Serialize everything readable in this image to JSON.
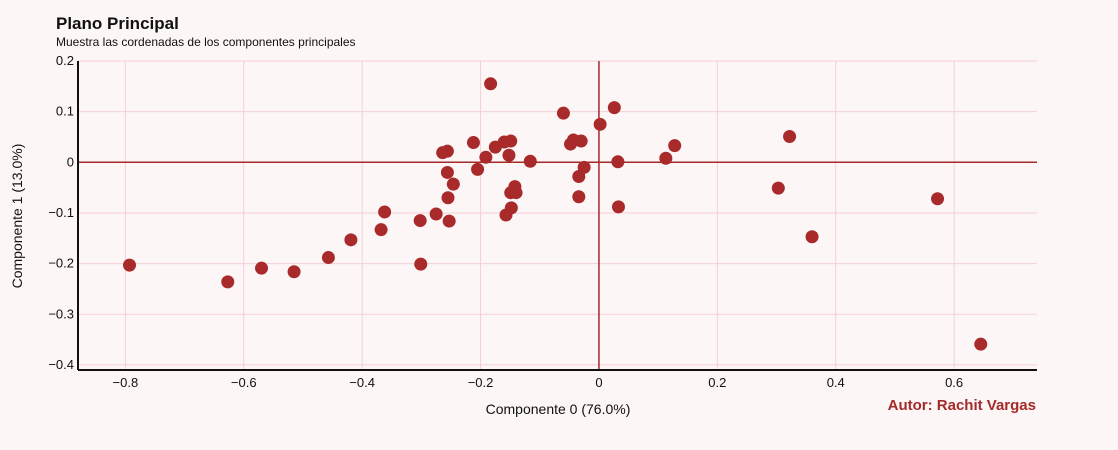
{
  "chart_data": {
    "type": "scatter",
    "title": "Plano Principal",
    "subtitle": "Muestra las cordenadas de los componentes principales",
    "xlabel": "Componente 0 (76.0%)",
    "ylabel": "Componente 1 (13.0%)",
    "xlim": [
      -0.88,
      0.74
    ],
    "ylim": [
      -0.41,
      0.2
    ],
    "x_ticks": [
      -0.8,
      -0.6,
      -0.4,
      -0.2,
      0,
      0.2,
      0.4,
      0.6
    ],
    "x_tick_labels": [
      "−0.8",
      "−0.6",
      "−0.4",
      "−0.2",
      "0",
      "0.2",
      "0.4",
      "0.6"
    ],
    "y_ticks": [
      0.2,
      0.1,
      0,
      -0.1,
      -0.2,
      -0.3,
      -0.4
    ],
    "y_tick_labels": [
      "0.2",
      "0.1",
      "0",
      "−0.1",
      "−0.2",
      "−0.3",
      "−0.4"
    ],
    "grid": true,
    "reference_lines": {
      "x": 0,
      "y": 0
    },
    "annotation": "Autor: Rachit Vargas",
    "colors": {
      "background": "#fdf6f6",
      "grid": "#f5cfd7",
      "points": "#a82a2a",
      "reference_lines": "#a52a2a",
      "axis": "#111111",
      "annotation": "#a52a2a"
    },
    "points": [
      {
        "x": -0.793,
        "y": -0.203
      },
      {
        "x": -0.627,
        "y": -0.236
      },
      {
        "x": -0.57,
        "y": -0.209
      },
      {
        "x": -0.515,
        "y": -0.216
      },
      {
        "x": -0.457,
        "y": -0.188
      },
      {
        "x": -0.419,
        "y": -0.153
      },
      {
        "x": -0.368,
        "y": -0.133
      },
      {
        "x": -0.362,
        "y": -0.098
      },
      {
        "x": -0.302,
        "y": -0.115
      },
      {
        "x": -0.301,
        "y": -0.201
      },
      {
        "x": -0.275,
        "y": -0.102
      },
      {
        "x": -0.264,
        "y": 0.019
      },
      {
        "x": -0.256,
        "y": 0.022
      },
      {
        "x": -0.256,
        "y": -0.02
      },
      {
        "x": -0.255,
        "y": -0.07
      },
      {
        "x": -0.253,
        "y": -0.116
      },
      {
        "x": -0.246,
        "y": -0.043
      },
      {
        "x": -0.212,
        "y": 0.039
      },
      {
        "x": -0.205,
        "y": -0.014
      },
      {
        "x": -0.191,
        "y": 0.01
      },
      {
        "x": -0.183,
        "y": 0.155
      },
      {
        "x": -0.175,
        "y": 0.03
      },
      {
        "x": -0.16,
        "y": 0.04
      },
      {
        "x": -0.157,
        "y": -0.104
      },
      {
        "x": -0.152,
        "y": 0.014
      },
      {
        "x": -0.149,
        "y": 0.042
      },
      {
        "x": -0.149,
        "y": -0.06
      },
      {
        "x": -0.148,
        "y": -0.09
      },
      {
        "x": -0.142,
        "y": -0.048
      },
      {
        "x": -0.14,
        "y": -0.06
      },
      {
        "x": -0.116,
        "y": 0.002
      },
      {
        "x": -0.06,
        "y": 0.097
      },
      {
        "x": -0.048,
        "y": 0.036
      },
      {
        "x": -0.043,
        "y": 0.044
      },
      {
        "x": -0.034,
        "y": -0.028
      },
      {
        "x": -0.034,
        "y": -0.068
      },
      {
        "x": -0.03,
        "y": 0.042
      },
      {
        "x": -0.025,
        "y": -0.01
      },
      {
        "x": 0.002,
        "y": 0.075
      },
      {
        "x": 0.026,
        "y": 0.108
      },
      {
        "x": 0.032,
        "y": 0.001
      },
      {
        "x": 0.033,
        "y": -0.088
      },
      {
        "x": 0.113,
        "y": 0.008
      },
      {
        "x": 0.128,
        "y": 0.033
      },
      {
        "x": 0.303,
        "y": -0.051
      },
      {
        "x": 0.322,
        "y": 0.051
      },
      {
        "x": 0.36,
        "y": -0.147
      },
      {
        "x": 0.572,
        "y": -0.072
      },
      {
        "x": 0.645,
        "y": -0.359
      }
    ]
  }
}
